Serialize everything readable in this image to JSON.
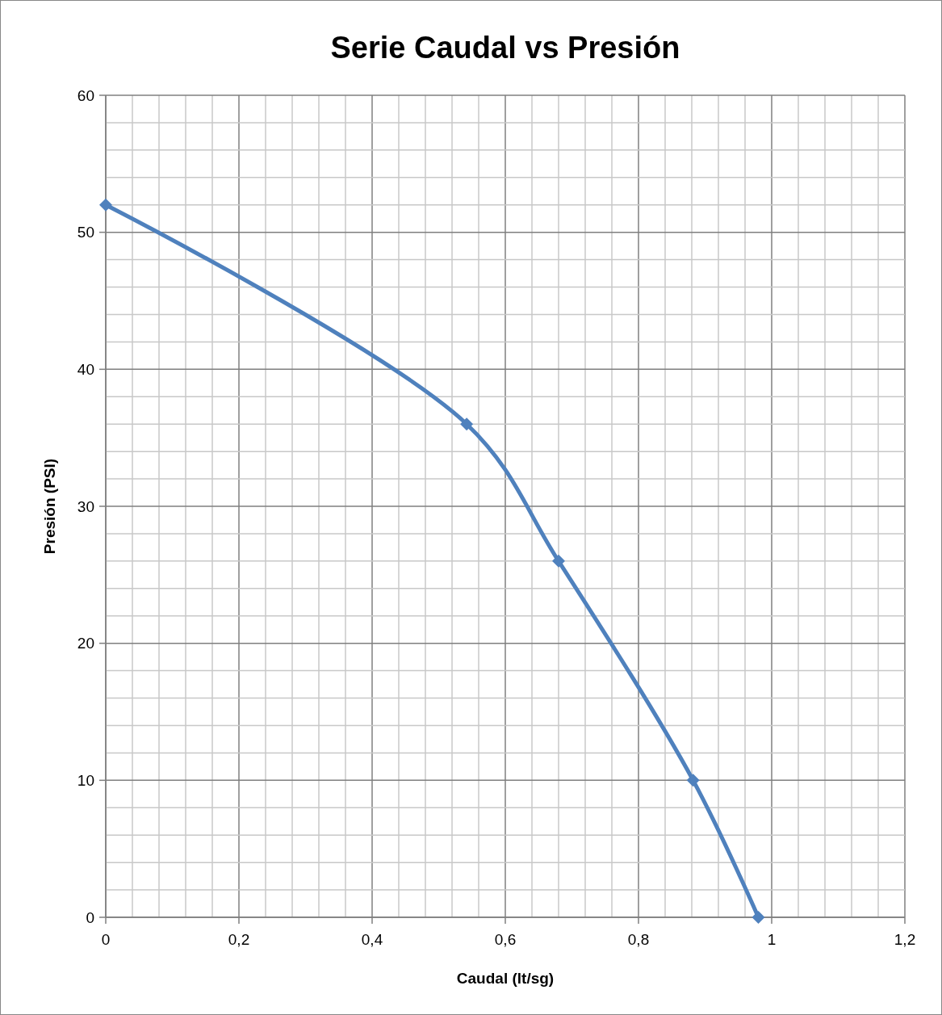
{
  "chart_data": {
    "type": "line",
    "title": "Serie Caudal vs Presión",
    "xlabel": "Caudal (lt/sg)",
    "ylabel": "Presión (PSI)",
    "series": [
      {
        "color": "#4f81bd",
        "x": [
          0,
          0.542,
          0.68,
          0.882,
          0.98
        ],
        "values": [
          52,
          36,
          26,
          10,
          0
        ]
      }
    ],
    "xlim": [
      0,
      1.2
    ],
    "ylim": [
      0,
      60
    ],
    "xticks": [
      0,
      {
        "value": 0.04,
        "label": null
      },
      {
        "value": 0.08,
        "label": null
      },
      {
        "value": 0.12,
        "label": null
      },
      {
        "value": 0.16,
        "label": null
      },
      {
        "value": 0.2,
        "label": "0,2"
      },
      {
        "value": 0.24,
        "label": null
      },
      {
        "value": 0.28,
        "label": null
      },
      {
        "value": 0.32,
        "label": null
      },
      {
        "value": 0.36,
        "label": null
      },
      {
        "value": 0.4,
        "label": "0,4"
      },
      {
        "value": 0.44,
        "label": null
      },
      {
        "value": 0.48,
        "label": null
      },
      {
        "value": 0.52,
        "label": null
      },
      {
        "value": 0.56,
        "label": null
      },
      {
        "value": 0.6,
        "label": "0,6"
      },
      {
        "value": 0.64,
        "label": null
      },
      {
        "value": 0.68,
        "label": null
      },
      {
        "value": 0.72,
        "label": null
      },
      {
        "value": 0.76,
        "label": null
      },
      {
        "value": 0.8,
        "label": "0,8"
      },
      {
        "value": 0.84,
        "label": null
      },
      {
        "value": 0.88,
        "label": null
      },
      {
        "value": 0.92,
        "label": null
      },
      {
        "value": 0.96,
        "label": null
      },
      1,
      {
        "value": 1.04,
        "label": null
      },
      {
        "value": 1.08,
        "label": null
      },
      {
        "value": 1.12,
        "label": null
      },
      {
        "value": 1.16,
        "label": null
      },
      {
        "value": 1.2,
        "label": "1,2"
      }
    ],
    "yticks": [
      0,
      {
        "value": 2,
        "label": null
      },
      {
        "value": 4,
        "label": null
      },
      {
        "value": 6,
        "label": null
      },
      {
        "value": 8,
        "label": null
      },
      10,
      {
        "value": 12,
        "label": null
      },
      {
        "value": 14,
        "label": null
      },
      {
        "value": 16,
        "label": null
      },
      {
        "value": 18,
        "label": null
      },
      20,
      {
        "value": 22,
        "label": null
      },
      {
        "value": 24,
        "label": null
      },
      {
        "value": 26,
        "label": null
      },
      {
        "value": 28,
        "label": null
      },
      30,
      {
        "value": 32,
        "label": null
      },
      {
        "value": 34,
        "label": null
      },
      {
        "value": 36,
        "label": null
      },
      {
        "value": 38,
        "label": null
      },
      40,
      {
        "value": 42,
        "label": null
      },
      {
        "value": 44,
        "label": null
      },
      {
        "value": 46,
        "label": null
      },
      {
        "value": 48,
        "label": null
      },
      50,
      {
        "value": 52,
        "label": null
      },
      {
        "value": 54,
        "label": null
      },
      {
        "value": 56,
        "label": null
      },
      {
        "value": 58,
        "label": null
      },
      60
    ],
    "grid": true,
    "marker": "diamond",
    "line_style": "solid"
  }
}
